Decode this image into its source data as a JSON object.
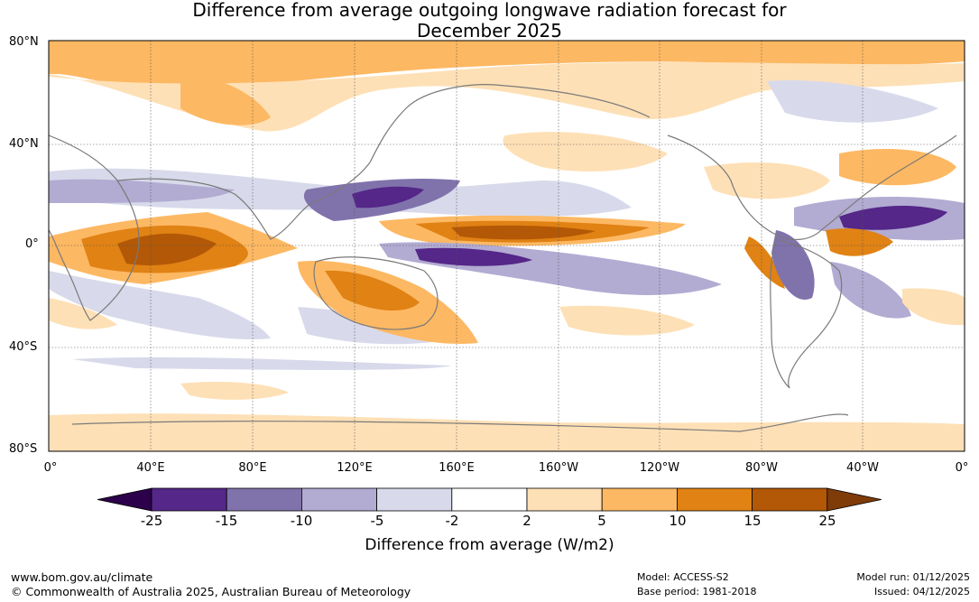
{
  "title": {
    "line1": "Difference from average outgoing longwave radiation forecast for",
    "line2": "December 2025"
  },
  "map": {
    "lat_labels": [
      "80°N",
      "40°N",
      "0°",
      "40°S",
      "80°S"
    ],
    "lon_labels": [
      "0°",
      "40°E",
      "80°E",
      "120°E",
      "160°E",
      "160°W",
      "120°W",
      "80°W",
      "40°W",
      "0°"
    ]
  },
  "legend": {
    "title": "Difference from average (W/m2)",
    "ticks": [
      "-25",
      "-15",
      "-10",
      "-5",
      "-2",
      "2",
      "5",
      "10",
      "15",
      "25"
    ],
    "colors": [
      "#2d004b",
      "#542788",
      "#8073ac",
      "#b2abd2",
      "#d8daeb",
      "#ffffff",
      "#fee0b6",
      "#fdb863",
      "#e08214",
      "#b35806",
      "#7f3b08"
    ]
  },
  "footer": {
    "url": "www.bom.gov.au/climate",
    "copyright": "© Commonwealth of Australia 2025, Australian Bureau of Meteorology",
    "model": "Model: ACCESS-S2",
    "base_period": "Base period: 1981-2018",
    "model_run": "Model run: 01/12/2025",
    "issued": "Issued: 04/12/2025"
  }
}
